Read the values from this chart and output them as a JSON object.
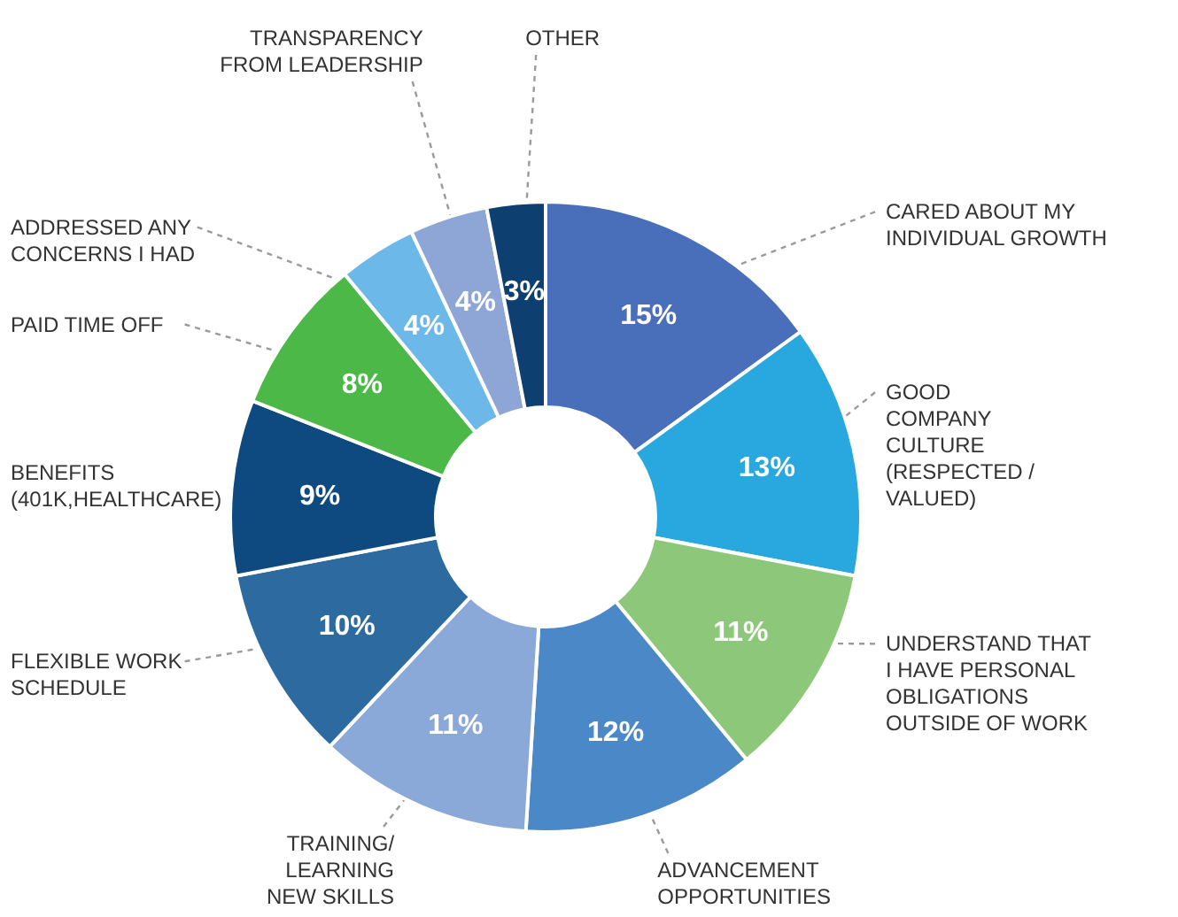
{
  "chart_data": {
    "type": "donut",
    "categories": [
      "CARED ABOUT MY\nINDIVIDUAL GROWTH",
      "GOOD\nCOMPANY\nCULTURE\n(RESPECTED /\nVALUED)",
      "UNDERSTAND THAT\nI HAVE PERSONAL\nOBLIGATIONS\nOUTSIDE OF WORK",
      "ADVANCEMENT\nOPPORTUNITIES",
      "TRAINING/\nLEARNING\nNEW SKILLS",
      "FLEXIBLE WORK\nSCHEDULE",
      "BENEFITS\n(401K,HEALTHCARE)",
      "PAID TIME OFF",
      "ADDRESSED ANY\nCONCERNS I HAD",
      "TRANSPARENCY\nFROM LEADERSHIP",
      "OTHER"
    ],
    "values": [
      15,
      13,
      11,
      12,
      11,
      10,
      9,
      8,
      4,
      4,
      3
    ],
    "value_labels": [
      "15%",
      "13%",
      "11%",
      "12%",
      "11%",
      "10%",
      "9%",
      "8%",
      "4%",
      "4%",
      "3%"
    ],
    "colors": [
      "#4a6fba",
      "#29a8e0",
      "#8dc87a",
      "#4a88c8",
      "#8aa9d8",
      "#2c6aa0",
      "#0e4a80",
      "#4cb848",
      "#6cb8e8",
      "#8ea6d6",
      "#0d3f70"
    ]
  }
}
